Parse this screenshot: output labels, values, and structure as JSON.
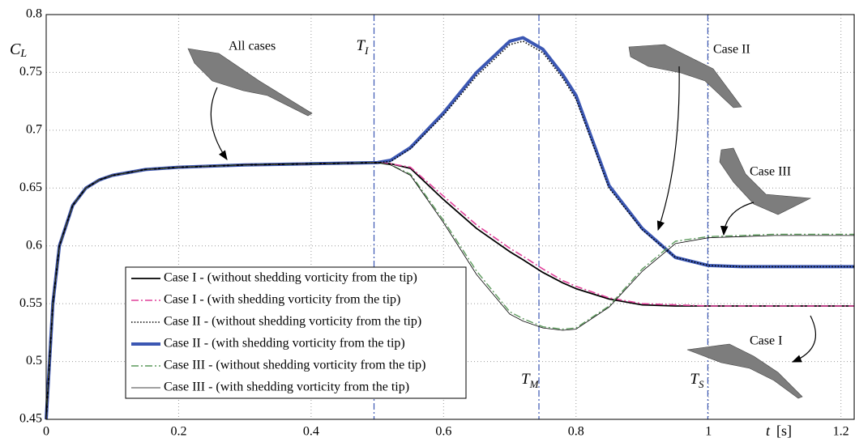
{
  "chart_data": {
    "type": "line",
    "y_label": {
      "main": "C",
      "sub": "L"
    },
    "x_label": {
      "main": "t",
      "unit": "[s]"
    },
    "x": [
      0,
      0.01,
      0.02,
      0.04,
      0.06,
      0.08,
      0.1,
      0.15,
      0.2,
      0.3,
      0.4,
      0.5,
      0.52,
      0.55,
      0.6,
      0.65,
      0.7,
      0.72,
      0.75,
      0.78,
      0.8,
      0.85,
      0.9,
      0.95,
      1,
      1.05,
      1.1,
      1.15,
      1.22
    ],
    "series": [
      {
        "name": "Case II - (with shedding vorticity from the tip)",
        "color": "#3b57b3",
        "style": "solid",
        "width": 4,
        "values": [
          0.45,
          0.55,
          0.6,
          0.635,
          0.65,
          0.657,
          0.661,
          0.666,
          0.668,
          0.67,
          0.671,
          0.672,
          0.674,
          0.685,
          0.715,
          0.75,
          0.777,
          0.78,
          0.77,
          0.748,
          0.73,
          0.652,
          0.615,
          0.59,
          0.583,
          0.582,
          0.582,
          0.582,
          0.582
        ]
      },
      {
        "name": "Case I - (without shedding vorticity from the tip)",
        "color": "#000000",
        "style": "solid",
        "width": 1.8,
        "values": [
          0.45,
          0.55,
          0.6,
          0.635,
          0.65,
          0.657,
          0.661,
          0.666,
          0.668,
          0.67,
          0.671,
          0.672,
          0.671,
          0.667,
          0.64,
          0.615,
          0.595,
          0.588,
          0.577,
          0.568,
          0.563,
          0.554,
          0.549,
          0.548,
          0.548,
          0.548,
          0.548,
          0.548,
          0.548
        ]
      },
      {
        "name": "Case I - (with shedding vorticity from the tip)",
        "color": "#e0409a",
        "style": "dashdot",
        "width": 1.6,
        "values": [
          0.45,
          0.55,
          0.6,
          0.635,
          0.65,
          0.657,
          0.661,
          0.666,
          0.668,
          0.67,
          0.671,
          0.672,
          0.671,
          0.668,
          0.643,
          0.618,
          0.598,
          0.591,
          0.58,
          0.57,
          0.565,
          0.555,
          0.55,
          0.549,
          0.548,
          0.548,
          0.548,
          0.548,
          0.548
        ]
      },
      {
        "name": "Case II - (without shedding vorticity from the tip)",
        "color": "#000000",
        "style": "dotted",
        "width": 1.6,
        "values": [
          0.45,
          0.55,
          0.6,
          0.635,
          0.65,
          0.657,
          0.661,
          0.666,
          0.668,
          0.67,
          0.671,
          0.672,
          0.673,
          0.684,
          0.713,
          0.747,
          0.774,
          0.777,
          0.767,
          0.745,
          0.727,
          0.65,
          0.614,
          0.59,
          0.583,
          0.582,
          0.582,
          0.582,
          0.582
        ]
      },
      {
        "name": "Case III - (without shedding vorticity from the tip)",
        "color": "#5c9a5c",
        "style": "dashdot",
        "width": 1.4,
        "values": [
          0.45,
          0.55,
          0.6,
          0.635,
          0.65,
          0.657,
          0.661,
          0.666,
          0.668,
          0.67,
          0.671,
          0.672,
          0.67,
          0.662,
          0.622,
          0.578,
          0.543,
          0.537,
          0.53,
          0.528,
          0.529,
          0.548,
          0.58,
          0.604,
          0.608,
          0.609,
          0.61,
          0.61,
          0.61
        ]
      },
      {
        "name": "Case III - (with shedding vorticity from the tip)",
        "color": "#000000",
        "style": "solid",
        "width": 0.8,
        "values": [
          0.45,
          0.55,
          0.6,
          0.635,
          0.65,
          0.657,
          0.661,
          0.666,
          0.668,
          0.67,
          0.671,
          0.672,
          0.67,
          0.661,
          0.62,
          0.575,
          0.541,
          0.535,
          0.529,
          0.527,
          0.528,
          0.547,
          0.578,
          0.602,
          0.607,
          0.608,
          0.609,
          0.609,
          0.609
        ]
      }
    ],
    "legend_order": [
      1,
      2,
      3,
      0,
      4,
      5
    ],
    "vlines": [
      {
        "x": 0.495,
        "main": "T",
        "sub": "I"
      },
      {
        "x": 0.744,
        "main": "T",
        "sub": "M"
      },
      {
        "x": 0.999,
        "main": "T",
        "sub": "S"
      }
    ],
    "annotations": [
      "All cases",
      "Case II",
      "Case III",
      "Case I"
    ],
    "xlim": [
      0,
      1.22
    ],
    "ylim": [
      0.45,
      0.8
    ],
    "xticks": [
      0,
      0.2,
      0.4,
      0.6,
      0.8,
      1,
      1.2
    ],
    "yticks": [
      0.45,
      0.5,
      0.55,
      0.6,
      0.65,
      0.7,
      0.75,
      0.8
    ],
    "grid": true
  }
}
